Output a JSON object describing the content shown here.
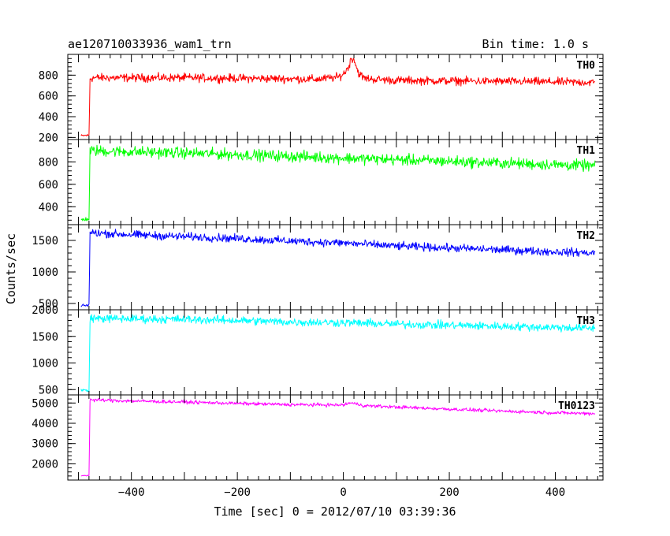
{
  "chart_data": {
    "type": "line",
    "title": "ae120710033936_wam1_trn",
    "bin_time_label": "Bin time: 1.0 s",
    "xlabel": "Time [sec] 0 = 2012/07/10 03:39:36",
    "ylabel": "Counts/sec",
    "xlim": [
      -520,
      490
    ],
    "xticks": [
      -400,
      -200,
      0,
      200,
      400
    ],
    "xtick_labels": [
      "−400",
      "−200",
      "0",
      "200",
      "400"
    ],
    "panels": [
      {
        "name": "TH0",
        "color": "#ff0000",
        "ylim": [
          180,
          1000
        ],
        "yticks": [
          200,
          400,
          600,
          800
        ],
        "ytick_labels": [
          "200",
          "400",
          "600",
          "800"
        ],
        "x": [
          -495,
          -485,
          -480,
          -478,
          -470,
          -400,
          -300,
          -200,
          -100,
          -50,
          -10,
          0,
          10,
          15,
          20,
          25,
          30,
          40,
          60,
          100,
          200,
          300,
          400,
          475
        ],
        "values": [
          215,
          220,
          220,
          770,
          775,
          775,
          775,
          770,
          765,
          760,
          780,
          810,
          880,
          960,
          960,
          870,
          810,
          770,
          760,
          750,
          745,
          740,
          735,
          730
        ],
        "noise": 28
      },
      {
        "name": "TH1",
        "color": "#00ff00",
        "ylim": [
          240,
          1000
        ],
        "yticks": [
          400,
          600,
          800
        ],
        "ytick_labels": [
          "400",
          "600",
          "800"
        ],
        "x": [
          -495,
          -485,
          -480,
          -478,
          -470,
          -400,
          -300,
          -200,
          -100,
          0,
          100,
          200,
          300,
          400,
          475
        ],
        "values": [
          285,
          290,
          290,
          900,
          900,
          890,
          880,
          865,
          850,
          835,
          820,
          805,
          790,
          775,
          765
        ],
        "noise": 35
      },
      {
        "name": "TH2",
        "color": "#0000ff",
        "ylim": [
          400,
          1750
        ],
        "yticks": [
          500,
          1000,
          1500
        ],
        "ytick_labels": [
          "500",
          "1000",
          "1500"
        ],
        "x": [
          -495,
          -485,
          -480,
          -478,
          -470,
          -400,
          -300,
          -200,
          -100,
          0,
          100,
          200,
          300,
          400,
          475
        ],
        "values": [
          460,
          470,
          480,
          1620,
          1620,
          1590,
          1560,
          1530,
          1490,
          1460,
          1410,
          1380,
          1350,
          1320,
          1300
        ],
        "noise": 45
      },
      {
        "name": "TH3",
        "color": "#00ffff",
        "ylim": [
          400,
          2000
        ],
        "yticks": [
          500,
          1000,
          1500,
          2000
        ],
        "ytick_labels": [
          "500",
          "1000",
          "1500",
          "2000"
        ],
        "x": [
          -495,
          -485,
          -480,
          -478,
          -470,
          -400,
          -300,
          -200,
          -100,
          0,
          100,
          200,
          300,
          400,
          475
        ],
        "values": [
          500,
          480,
          470,
          1850,
          1840,
          1830,
          1820,
          1800,
          1770,
          1760,
          1730,
          1710,
          1690,
          1670,
          1650
        ],
        "noise": 55
      },
      {
        "name": "TH0123",
        "color": "#ff00ff",
        "ylim": [
          1200,
          5400
        ],
        "yticks": [
          2000,
          3000,
          4000,
          5000
        ],
        "ytick_labels": [
          "2000",
          "3000",
          "4000",
          "5000"
        ],
        "x": [
          -495,
          -485,
          -480,
          -478,
          -470,
          -400,
          -300,
          -200,
          -100,
          0,
          10,
          20,
          40,
          100,
          200,
          300,
          400,
          475
        ],
        "values": [
          1420,
          1420,
          1430,
          5150,
          5150,
          5100,
          5050,
          4980,
          4920,
          4900,
          5000,
          4980,
          4870,
          4800,
          4700,
          4600,
          4520,
          4480
        ],
        "noise": 60
      }
    ]
  }
}
